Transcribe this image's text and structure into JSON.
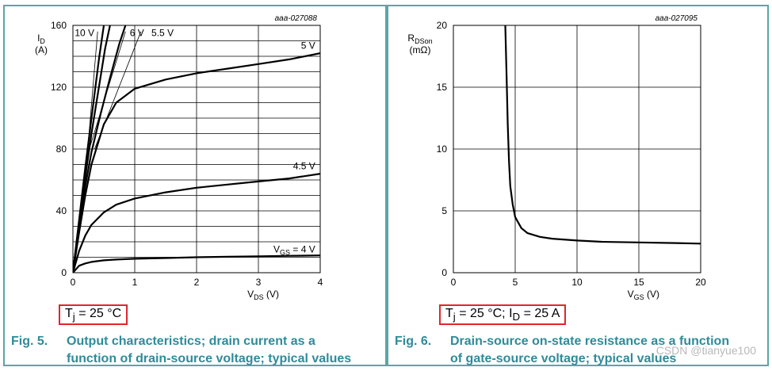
{
  "chart_data": [
    {
      "type": "line",
      "code": "aaa-027088",
      "title": "",
      "ylabel": "I",
      "ylabel_sub": "D",
      "ylabel_unit": "(A)",
      "xlabel": "V",
      "xlabel_sub": "DS",
      "xlabel_unit": "(V)",
      "xlim": [
        0,
        4
      ],
      "ylim": [
        0,
        160
      ],
      "xticks": [
        "0",
        "1",
        "2",
        "3",
        "4"
      ],
      "yticks": [
        "0",
        "40",
        "80",
        "120",
        "160"
      ],
      "grid": true,
      "series": [
        {
          "name": "10 V",
          "x": [
            0,
            0.1,
            0.2,
            0.3,
            0.42,
            0.5
          ],
          "y": [
            0,
            34,
            68,
            100,
            138,
            160
          ]
        },
        {
          "name": "6 V",
          "x": [
            0,
            0.1,
            0.2,
            0.3,
            0.4,
            0.52,
            0.6
          ],
          "y": [
            0,
            32,
            62,
            90,
            115,
            145,
            160
          ]
        },
        {
          "name": "5.5 V",
          "x": [
            0,
            0.1,
            0.2,
            0.3,
            0.45,
            0.6,
            0.75,
            0.85
          ],
          "y": [
            0,
            30,
            56,
            78,
            103,
            126,
            148,
            160
          ]
        },
        {
          "name": "5 V",
          "x": [
            0,
            0.1,
            0.2,
            0.3,
            0.5,
            0.7,
            1,
            1.5,
            2,
            2.5,
            3,
            3.5,
            4
          ],
          "y": [
            0,
            26,
            50,
            70,
            96,
            110,
            119,
            125,
            129,
            132,
            135,
            138,
            142
          ]
        },
        {
          "name": "4.5 V",
          "x": [
            0,
            0.1,
            0.2,
            0.3,
            0.5,
            0.7,
            1,
            1.5,
            2,
            2.5,
            3,
            3.5,
            4
          ],
          "y": [
            0,
            14,
            24,
            31,
            39,
            44,
            48,
            52,
            55,
            57,
            59,
            61,
            64
          ]
        },
        {
          "name": "V<sub>GS</sub> = 4 V",
          "x": [
            0,
            0.1,
            0.2,
            0.3,
            0.5,
            0.7,
            1,
            1.5,
            2,
            2.5,
            3,
            3.5,
            4
          ],
          "y": [
            0,
            4.5,
            6,
            7,
            8,
            8.5,
            9,
            9.5,
            10,
            10.3,
            10.6,
            10.9,
            11.2
          ]
        }
      ],
      "series_labels": [
        "10 V",
        "6 V",
        "5.5 V",
        "5 V",
        "4.5 V",
        "V",
        "GS",
        " = 4 V"
      ],
      "condition": {
        "prefix": "T",
        "sub": "j",
        "text": " = 25 °C"
      },
      "fig_number": "Fig. 5.",
      "caption_line1": "Output characteristics; drain current as a",
      "caption_line2": "function of drain-source voltage; typical values"
    },
    {
      "type": "line",
      "code": "aaa-027095",
      "title": "",
      "ylabel": "R",
      "ylabel_sub": "DSon",
      "ylabel_unit": "(mΩ)",
      "xlabel": "V",
      "xlabel_sub": "GS",
      "xlabel_unit": "(V)",
      "xlim": [
        0,
        20
      ],
      "ylim": [
        0,
        20
      ],
      "xticks": [
        "0",
        "5",
        "10",
        "15",
        "20"
      ],
      "yticks": [
        "0",
        "5",
        "10",
        "15",
        "20"
      ],
      "grid": true,
      "series": [
        {
          "x": [
            4.2,
            4.3,
            4.4,
            4.5,
            4.6,
            4.8,
            5.0,
            5.5,
            6,
            7,
            8,
            10,
            12,
            15,
            18,
            20
          ],
          "y": [
            20,
            16,
            12,
            9,
            7,
            5.5,
            4.5,
            3.6,
            3.2,
            2.9,
            2.75,
            2.6,
            2.5,
            2.45,
            2.4,
            2.35
          ]
        }
      ],
      "condition": {
        "prefix": "T",
        "sub": "j",
        "text": " = 25 °C; I",
        "sub2": "D",
        "text2": " = 25 A"
      },
      "fig_number": "Fig. 6.",
      "caption_line1": "Drain-source on-state resistance as a function",
      "caption_line2": "of gate-source voltage; typical values"
    }
  ],
  "watermark": "CSDN @tianyue100"
}
